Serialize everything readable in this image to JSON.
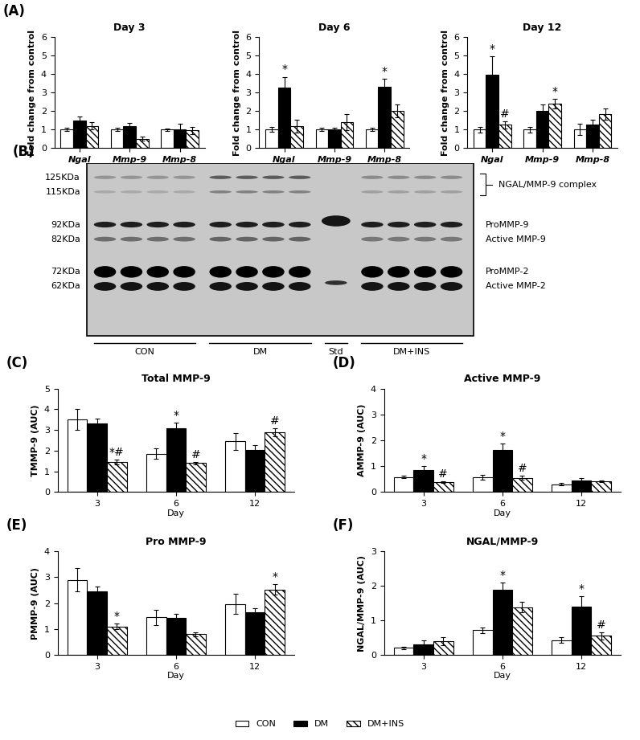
{
  "chart_data": [
    {
      "panel": "(A)",
      "type": "bar",
      "title": "Day 3",
      "ylabel": "Fold change from control",
      "categories": [
        "Ngal",
        "Mmp-9",
        "Mmp-8"
      ],
      "ylim": [
        0,
        6
      ],
      "yticks": [
        0,
        1,
        2,
        3,
        4,
        5,
        6
      ],
      "legend": "lower center",
      "series": [
        {
          "name": "CON",
          "color": "#ffffff",
          "values": [
            1,
            1,
            1
          ],
          "errors": [
            0.1,
            0.08,
            0.07
          ]
        },
        {
          "name": "DM",
          "color": "#000000",
          "values": [
            1.5,
            1.2,
            1.0
          ],
          "errors": [
            0.2,
            0.15,
            0.3
          ]
        },
        {
          "name": "DM+INS",
          "color": "#ffffff",
          "values": [
            1.2,
            0.5,
            0.95
          ],
          "errors": [
            0.2,
            0.1,
            0.2
          ]
        }
      ]
    },
    {
      "type": "bar",
      "title": "Day 6",
      "ylabel": "Fold change from control",
      "categories": [
        "Ngal",
        "Mmp-9",
        "Mmp-8"
      ],
      "ylim": [
        0,
        6
      ],
      "yticks": [
        0,
        1,
        2,
        3,
        4,
        5,
        6
      ],
      "series": [
        {
          "name": "CON",
          "color": "#ffffff",
          "values": [
            1,
            1,
            1
          ],
          "errors": [
            0.12,
            0.08,
            0.08
          ]
        },
        {
          "name": "DM",
          "color": "#000000",
          "values": [
            3.25,
            1.0,
            3.3
          ],
          "errors": [
            0.6,
            0.1,
            0.45
          ],
          "significance": [
            "*",
            null,
            "*"
          ]
        },
        {
          "name": "DM+INS",
          "color": "#ffffff",
          "values": [
            1.2,
            1.4,
            2.0
          ],
          "errors": [
            0.35,
            0.45,
            0.35
          ]
        }
      ]
    },
    {
      "type": "bar",
      "title": "Day 12",
      "ylabel": "Fold change from control",
      "categories": [
        "Ngal",
        "Mmp-9",
        "Mmp-8"
      ],
      "ylim": [
        0,
        6
      ],
      "yticks": [
        0,
        1,
        2,
        3,
        4,
        5,
        6
      ],
      "series": [
        {
          "name": "CON",
          "color": "#ffffff",
          "values": [
            1,
            1,
            1
          ],
          "errors": [
            0.15,
            0.15,
            0.3
          ]
        },
        {
          "name": "DM",
          "color": "#000000",
          "values": [
            3.95,
            2.0,
            1.25
          ],
          "errors": [
            1.0,
            0.35,
            0.3
          ],
          "significance": [
            "*",
            null,
            null
          ]
        },
        {
          "name": "DM+INS",
          "color": "#ffffff",
          "values": [
            1.25,
            2.4,
            1.85
          ],
          "errors": [
            0.2,
            0.25,
            0.3
          ],
          "significance": [
            "#",
            "*",
            null
          ]
        }
      ]
    },
    {
      "panel": "(C)",
      "type": "bar",
      "title": "Total MMP-9",
      "ylabel": "TMMP-9 (AUC)",
      "xlabel": "Day",
      "categories": [
        "3",
        "6",
        "12"
      ],
      "ylim": [
        0,
        5
      ],
      "yticks": [
        0,
        1,
        2,
        3,
        4,
        5
      ],
      "series": [
        {
          "name": "CON",
          "color": "#ffffff",
          "values": [
            3.5,
            1.85,
            2.45
          ],
          "errors": [
            0.5,
            0.25,
            0.4
          ]
        },
        {
          "name": "DM",
          "color": "#000000",
          "values": [
            3.3,
            3.1,
            2.05
          ],
          "errors": [
            0.25,
            0.25,
            0.2
          ],
          "significance": [
            null,
            "*",
            null
          ]
        },
        {
          "name": "DM+INS",
          "color": "#ffffff",
          "values": [
            1.45,
            1.4,
            2.9
          ],
          "errors": [
            0.12,
            0.07,
            0.2
          ],
          "significance": [
            "*#",
            "#",
            "#"
          ]
        }
      ]
    },
    {
      "panel": "(D)",
      "type": "bar",
      "title": "Active MMP-9",
      "ylabel": "AMMP-9 (AUC)",
      "xlabel": "Day",
      "categories": [
        "3",
        "6",
        "12"
      ],
      "ylim": [
        0,
        4
      ],
      "yticks": [
        0,
        1,
        2,
        3,
        4
      ],
      "series": [
        {
          "name": "CON",
          "color": "#ffffff",
          "values": [
            0.58,
            0.58,
            0.3
          ],
          "errors": [
            0.05,
            0.1,
            0.05
          ]
        },
        {
          "name": "DM",
          "color": "#000000",
          "values": [
            0.85,
            1.62,
            0.45
          ],
          "errors": [
            0.15,
            0.25,
            0.08
          ],
          "significance": [
            "*",
            "*",
            null
          ]
        },
        {
          "name": "DM+INS",
          "color": "#ffffff",
          "values": [
            0.38,
            0.55,
            0.42
          ],
          "errors": [
            0.03,
            0.08,
            0.03
          ],
          "significance": [
            "#",
            "#",
            null
          ]
        }
      ]
    },
    {
      "panel": "(E)",
      "type": "bar",
      "title": "Pro MMP-9",
      "ylabel": "PMMP-9 (AUC)",
      "xlabel": "Day",
      "categories": [
        "3",
        "6",
        "12"
      ],
      "ylim": [
        0,
        4
      ],
      "yticks": [
        0,
        1,
        2,
        3,
        4
      ],
      "series": [
        {
          "name": "CON",
          "color": "#ffffff",
          "values": [
            2.9,
            1.45,
            1.97
          ],
          "errors": [
            0.45,
            0.3,
            0.4
          ]
        },
        {
          "name": "DM",
          "color": "#000000",
          "values": [
            2.45,
            1.42,
            1.65
          ],
          "errors": [
            0.2,
            0.15,
            0.15
          ]
        },
        {
          "name": "DM+INS",
          "color": "#ffffff",
          "values": [
            1.1,
            0.8,
            2.52
          ],
          "errors": [
            0.1,
            0.07,
            0.2
          ],
          "significance": [
            "*",
            null,
            "*"
          ]
        }
      ]
    },
    {
      "panel": "(F)",
      "type": "bar",
      "title": "NGAL/MMP-9",
      "ylabel": "NGAL/MMP-9 (AUC)",
      "xlabel": "Day",
      "categories": [
        "3",
        "6",
        "12"
      ],
      "ylim": [
        0,
        3
      ],
      "yticks": [
        0,
        1,
        2,
        3
      ],
      "series": [
        {
          "name": "CON",
          "color": "#ffffff",
          "values": [
            0.2,
            0.72,
            0.43
          ],
          "errors": [
            0.04,
            0.08,
            0.08
          ]
        },
        {
          "name": "DM",
          "color": "#000000",
          "values": [
            0.3,
            1.88,
            1.4
          ],
          "errors": [
            0.12,
            0.22,
            0.3
          ],
          "significance": [
            null,
            "*",
            "*"
          ]
        },
        {
          "name": "DM+INS",
          "color": "#ffffff",
          "values": [
            0.4,
            1.38,
            0.55
          ],
          "errors": [
            0.12,
            0.15,
            0.1
          ],
          "significance": [
            null,
            null,
            "#"
          ]
        }
      ]
    }
  ],
  "blot": {
    "panel": "(B)",
    "mw_labels": [
      "125KDa",
      "115KDa",
      "92KDa",
      "82KDa",
      "72KDa",
      "62KDa"
    ],
    "band_labels": [
      "NGAL/MMP-9 complex",
      "ProMMP-9",
      "Active MMP-9",
      "ProMMP-2",
      "Active MMP-2"
    ],
    "lane_groups": [
      "CON",
      "DM",
      "Std",
      "DM+INS"
    ]
  }
}
